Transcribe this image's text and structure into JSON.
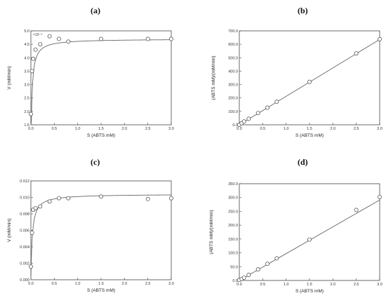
{
  "panels": [
    {
      "id": "a",
      "label": "(a)"
    },
    {
      "id": "b",
      "label": "(b)"
    },
    {
      "id": "c",
      "label": "(c)"
    },
    {
      "id": "d",
      "label": "(d)"
    }
  ],
  "chart_data": [
    {
      "id": "a",
      "type": "scatter",
      "fit": "michaelis-menten",
      "xlabel": "S (ABTS mM)",
      "ylabel": "V (mM/min)",
      "y_multiplier": "×10⁻³",
      "xlim": [
        0,
        3
      ],
      "ylim": [
        1.5,
        5.0
      ],
      "xticks": [
        "0.0",
        "0.5",
        "1.0",
        "1.5",
        "2.0",
        "2.5",
        "3.0"
      ],
      "yticks": [
        "1.5",
        "2.0",
        "2.5",
        "3.0",
        "3.5",
        "4.0",
        "4.5",
        "5.0"
      ],
      "x": [
        0.0,
        0.025,
        0.05,
        0.1,
        0.2,
        0.4,
        0.6,
        0.8,
        1.5,
        2.5,
        3.0
      ],
      "y": [
        1.9,
        3.5,
        3.96,
        4.3,
        4.5,
        4.8,
        4.7,
        4.6,
        4.7,
        4.7,
        4.7
      ],
      "fit_params": {
        "vmax": 4.7,
        "km": 0.02
      }
    },
    {
      "id": "b",
      "type": "scatter",
      "fit": "linear",
      "xlabel": "S (ABTS mM)",
      "ylabel": "(ABTS mM)/(mM/min)",
      "xlim": [
        0,
        3
      ],
      "ylim": [
        0,
        700
      ],
      "xticks": [
        "0.0",
        "0.5",
        "1.0",
        "1.5",
        "2.0",
        "2.5",
        "3.0"
      ],
      "yticks": [
        "0.0",
        "100.0",
        "200.0",
        "300.0",
        "400.0",
        "500.0",
        "600.0",
        "700.0"
      ],
      "x": [
        0.0,
        0.05,
        0.1,
        0.2,
        0.4,
        0.6,
        0.8,
        1.5,
        2.5,
        3.0
      ],
      "y": [
        0,
        12,
        25,
        45,
        88,
        128,
        172,
        320,
        532,
        638
      ],
      "fit_line": {
        "slope": 212,
        "intercept": 0
      }
    },
    {
      "id": "c",
      "type": "scatter",
      "fit": "michaelis-menten",
      "xlabel": "S (ABTS mM)",
      "ylabel": "V (mM/min)",
      "xlim": [
        0,
        3
      ],
      "ylim": [
        0,
        0.012
      ],
      "xticks": [
        "0.0",
        "0.5",
        "1.0",
        "1.5",
        "2.0",
        "2.5",
        "3.0"
      ],
      "yticks": [
        "0.000",
        "0.002",
        "0.004",
        "0.006",
        "0.008",
        "0.010",
        "0.012"
      ],
      "x": [
        0.0,
        0.025,
        0.05,
        0.1,
        0.2,
        0.4,
        0.6,
        0.8,
        1.5,
        2.5,
        3.0
      ],
      "y": [
        0.0016,
        0.0057,
        0.0085,
        0.0087,
        0.0089,
        0.0095,
        0.0099,
        0.0099,
        0.0101,
        0.0098,
        0.0099
      ],
      "fit_params": {
        "vmax": 0.0104,
        "km": 0.03
      }
    },
    {
      "id": "d",
      "type": "scatter",
      "fit": "linear",
      "xlabel": "S (ABTS mM)",
      "ylabel": "(ABTS mM)/(mM/min)",
      "xlim": [
        0,
        3
      ],
      "ylim": [
        0,
        350
      ],
      "xticks": [
        "0.0",
        "0.5",
        "1.0",
        "1.5",
        "2.0",
        "2.5",
        "3.0"
      ],
      "yticks": [
        "0.0",
        "50.0",
        "100.0",
        "150.0",
        "200.0",
        "250.0",
        "300.0",
        "350.0"
      ],
      "x": [
        0.0,
        0.05,
        0.1,
        0.2,
        0.4,
        0.6,
        0.8,
        1.5,
        2.5,
        3.0
      ],
      "y": [
        2,
        5,
        10,
        20,
        40,
        60,
        80,
        148,
        255,
        302
      ],
      "fit_line": {
        "slope": 97,
        "intercept": 0
      }
    }
  ]
}
